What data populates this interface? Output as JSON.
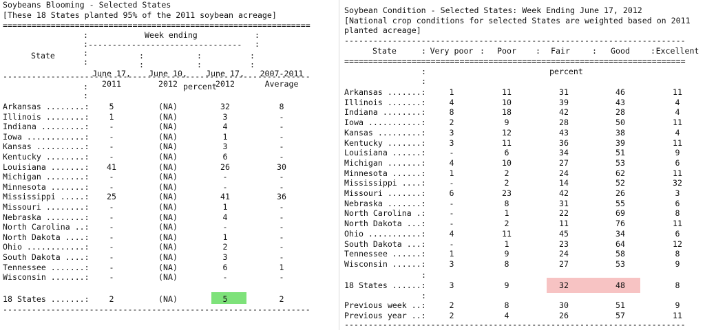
{
  "left": {
    "title": "Soybeans Blooming - Selected States",
    "note": "[These 18 States planted 95% of the 2011 soybean acreage]",
    "rules": {
      "top": "================================================================",
      "header_sep": "----------------------------------------------------------------",
      "week_sep": "--------------------------------",
      "bottom": "----------------------------------------------------------------"
    },
    "colon_colons": {
      "c1": ":\n:\n:\n:",
      "c1b": ":\n:",
      "c5": ":\n:"
    },
    "week_ending": "Week ending",
    "state_label": "State",
    "columns": [
      {
        "line1": "June 17,",
        "line2": "2011"
      },
      {
        "line1": "June 10,",
        "line2": "2012"
      },
      {
        "line1": "June 17,",
        "line2": "2012"
      },
      {
        "line1": "2007-2011",
        "line2": "Average"
      }
    ],
    "col_colons": ": \n:",
    "unit": "percent",
    "rows": [
      {
        "state": "Arkansas ........:",
        "v": [
          "5",
          "(NA)",
          "32",
          "8"
        ]
      },
      {
        "state": "Illinois ........:",
        "v": [
          "1",
          "(NA)",
          "3",
          "-"
        ]
      },
      {
        "state": "Indiana .........:",
        "v": [
          "-",
          "(NA)",
          "4",
          "-"
        ]
      },
      {
        "state": "Iowa ............:",
        "v": [
          "-",
          "(NA)",
          "1",
          "-"
        ]
      },
      {
        "state": "Kansas ..........:",
        "v": [
          "-",
          "(NA)",
          "3",
          "-"
        ]
      },
      {
        "state": "Kentucky ........:",
        "v": [
          "-",
          "(NA)",
          "6",
          "-"
        ]
      },
      {
        "state": "Louisiana .......:",
        "v": [
          "41",
          "(NA)",
          "26",
          "30"
        ]
      },
      {
        "state": "Michigan ........:",
        "v": [
          "-",
          "(NA)",
          "-",
          "-"
        ]
      },
      {
        "state": "Minnesota .......:",
        "v": [
          "-",
          "(NA)",
          "-",
          "-"
        ]
      },
      {
        "state": "Mississippi .....:",
        "v": [
          "25",
          "(NA)",
          "41",
          "36"
        ]
      },
      {
        "state": "Missouri ........:",
        "v": [
          "-",
          "(NA)",
          "1",
          "-"
        ]
      },
      {
        "state": "Nebraska ........:",
        "v": [
          "-",
          "(NA)",
          "4",
          "-"
        ]
      },
      {
        "state": "North Carolina ..:",
        "v": [
          "-",
          "(NA)",
          "-",
          "-"
        ]
      },
      {
        "state": "North Dakota ....:",
        "v": [
          "-",
          "(NA)",
          "1",
          "-"
        ]
      },
      {
        "state": "Ohio ............:",
        "v": [
          "-",
          "(NA)",
          "2",
          "-"
        ]
      },
      {
        "state": "South Dakota ....:",
        "v": [
          "-",
          "(NA)",
          "3",
          "-"
        ]
      },
      {
        "state": "Tennessee .......:",
        "v": [
          "-",
          "(NA)",
          "6",
          "1"
        ]
      },
      {
        "state": "Wisconsin .......:",
        "v": [
          "-",
          "(NA)",
          "-",
          "-"
        ]
      }
    ],
    "total": {
      "state": "18 States .......:",
      "v": [
        "2",
        "(NA)",
        "5",
        "2"
      ]
    },
    "highlight_color": "#7ee27a"
  },
  "right": {
    "title": "Soybean Condition - Selected States: Week Ending June 17, 2012",
    "note1": "[National crop conditions for selected States are weighted based on 2011",
    "note2": "planted acreage]",
    "rules": {
      "top": "-----------------------------------------------------------------------",
      "header_sep": "=======================================================================",
      "bottom": "-----------------------------------------------------------------------"
    },
    "state_label": "State",
    "colon": ":",
    "columns": [
      "Very poor",
      "Poor",
      "Fair",
      "Good",
      "Excellent"
    ],
    "unit": "percent",
    "rows": [
      {
        "state": "Arkansas .......:",
        "v": [
          "1",
          "11",
          "31",
          "46",
          "11"
        ]
      },
      {
        "state": "Illinois .......:",
        "v": [
          "4",
          "10",
          "39",
          "43",
          "4"
        ]
      },
      {
        "state": "Indiana ........:",
        "v": [
          "8",
          "18",
          "42",
          "28",
          "4"
        ]
      },
      {
        "state": "Iowa ...........:",
        "v": [
          "2",
          "9",
          "28",
          "50",
          "11"
        ]
      },
      {
        "state": "Kansas .........:",
        "v": [
          "3",
          "12",
          "43",
          "38",
          "4"
        ]
      },
      {
        "state": "Kentucky .......:",
        "v": [
          "3",
          "11",
          "36",
          "39",
          "11"
        ]
      },
      {
        "state": "Louisiana ......:",
        "v": [
          "-",
          "6",
          "34",
          "51",
          "9"
        ]
      },
      {
        "state": "Michigan .......:",
        "v": [
          "4",
          "10",
          "27",
          "53",
          "6"
        ]
      },
      {
        "state": "Minnesota ......:",
        "v": [
          "1",
          "2",
          "24",
          "62",
          "11"
        ]
      },
      {
        "state": "Mississippi ....:",
        "v": [
          "-",
          "2",
          "14",
          "52",
          "32"
        ]
      },
      {
        "state": "Missouri .......:",
        "v": [
          "6",
          "23",
          "42",
          "26",
          "3"
        ]
      },
      {
        "state": "Nebraska .......:",
        "v": [
          "-",
          "8",
          "31",
          "55",
          "6"
        ]
      },
      {
        "state": "North Carolina .:",
        "v": [
          "-",
          "1",
          "22",
          "69",
          "8"
        ]
      },
      {
        "state": "North Dakota ...:",
        "v": [
          "-",
          "2",
          "11",
          "76",
          "11"
        ]
      },
      {
        "state": "Ohio ...........:",
        "v": [
          "4",
          "11",
          "45",
          "34",
          "6"
        ]
      },
      {
        "state": "South Dakota ...:",
        "v": [
          "-",
          "1",
          "23",
          "64",
          "12"
        ]
      },
      {
        "state": "Tennessee ......:",
        "v": [
          "1",
          "9",
          "24",
          "58",
          "8"
        ]
      },
      {
        "state": "Wisconsin ......:",
        "v": [
          "3",
          "8",
          "27",
          "53",
          "9"
        ]
      }
    ],
    "total": {
      "state": "18 States ......:",
      "v": [
        "3",
        "9",
        "32",
        "48",
        "8"
      ]
    },
    "previous_week": {
      "state": "Previous week ..:",
      "v": [
        "2",
        "8",
        "30",
        "51",
        "9"
      ]
    },
    "previous_year": {
      "state": "Previous year ..:",
      "v": [
        "2",
        "4",
        "26",
        "57",
        "11"
      ]
    },
    "highlight_color": "#f7c3c3"
  }
}
